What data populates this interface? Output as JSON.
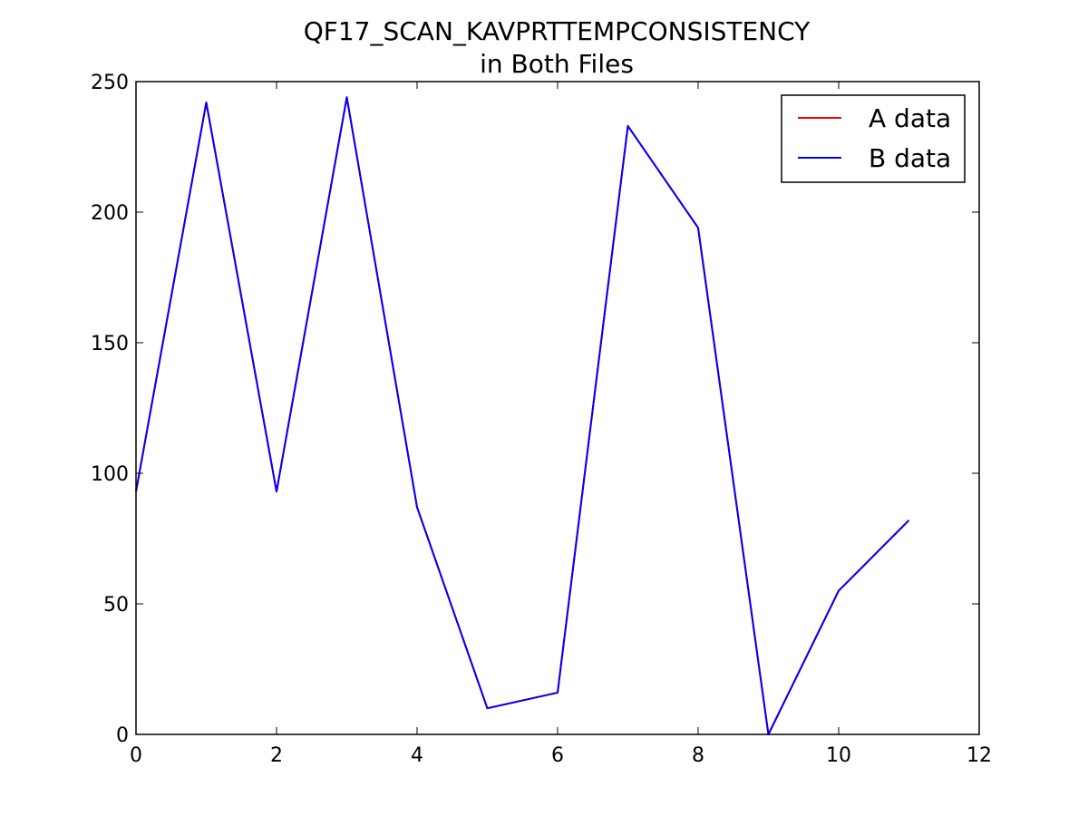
{
  "chart_data": {
    "type": "line",
    "title": "QF17_SCAN_KAVPRTTEMPCONSISTENCY",
    "subtitle": "in Both Files",
    "xlabel": "",
    "ylabel": "",
    "xlim": [
      0,
      12
    ],
    "ylim": [
      0,
      250
    ],
    "xticks": [
      0,
      2,
      4,
      6,
      8,
      10,
      12
    ],
    "yticks": [
      0,
      50,
      100,
      150,
      200,
      250
    ],
    "grid": false,
    "legend_position": "top-right",
    "x": [
      0,
      1,
      2,
      3,
      4,
      5,
      6,
      7,
      8,
      9,
      10,
      11
    ],
    "series": [
      {
        "name": "A data",
        "color": "#ff0000",
        "values": [
          93,
          242,
          93,
          244,
          87,
          10,
          16,
          233,
          194,
          0,
          55,
          82
        ]
      },
      {
        "name": "B data",
        "color": "#0000ff",
        "values": [
          93,
          242,
          93,
          244,
          87,
          10,
          16,
          233,
          194,
          0,
          55,
          82
        ]
      }
    ]
  }
}
